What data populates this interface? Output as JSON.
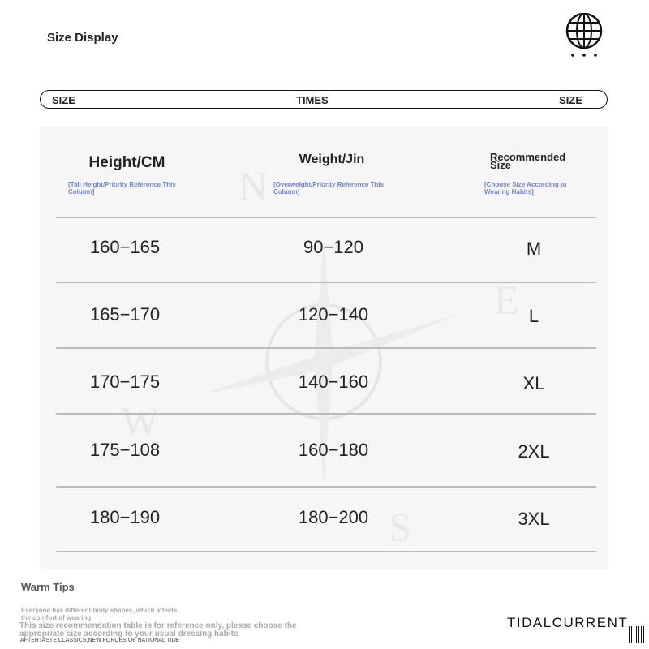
{
  "header": {
    "title": "Size Display",
    "globe_icon": "globe-icon"
  },
  "bar": {
    "left": "SIZE",
    "center": "TIMES",
    "right": "SIZE"
  },
  "table": {
    "columns": [
      {
        "label": "Height/CM",
        "note": "[Tall Height/Priority Reference This Column]"
      },
      {
        "label": "Weight/Jin",
        "note": "[Overweight/Priority Reference This Column]"
      },
      {
        "label": "Recommended Size",
        "note": "[Choose Size According to Wearing Habits]"
      }
    ],
    "rows": [
      [
        "160−165",
        "90−120",
        "M"
      ],
      [
        "165−170",
        "120−140",
        "L"
      ],
      [
        "170−175",
        "140−160",
        "XL"
      ],
      [
        "175−108",
        "160−180",
        "2XL"
      ],
      [
        "180−190",
        "180−200",
        "3XL"
      ]
    ]
  },
  "watermark": {
    "letters": [
      "N",
      "E",
      "W",
      "S"
    ]
  },
  "tips": {
    "title": "Warm Tips",
    "line1": "Everyone has different body shapes, which affects the comfort of wearing",
    "line2": "This size recommendation table is for reference only, please choose the appropriate size according to your usual dressing habits",
    "line3": "AFTERTASTE CLASSICS,NEW FORCES OF NATIONAL TIDE"
  },
  "brand": "TIDALCURRENT"
}
